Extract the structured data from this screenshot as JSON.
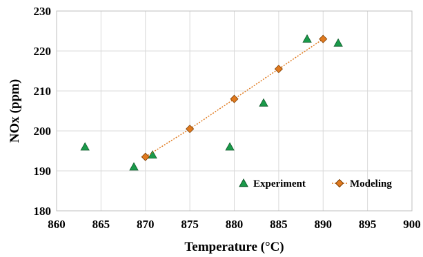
{
  "chart_data": {
    "type": "scatter",
    "title": "",
    "xlabel": "Temperature (°C)",
    "ylabel": "NOx (ppm)",
    "xlim": [
      860,
      900
    ],
    "ylim": [
      180,
      230
    ],
    "xticks": [
      860,
      865,
      870,
      875,
      880,
      885,
      890,
      895,
      900
    ],
    "yticks": [
      180,
      190,
      200,
      210,
      220,
      230
    ],
    "grid": true,
    "legend_position": "bottom-right",
    "series": [
      {
        "name": "Experiment",
        "marker": "triangle",
        "line": false,
        "color": "#1a9a4a",
        "points": [
          [
            863.2,
            196
          ],
          [
            868.7,
            191
          ],
          [
            870.8,
            194
          ],
          [
            879.5,
            196
          ],
          [
            883.3,
            207
          ],
          [
            888.2,
            223
          ],
          [
            891.7,
            222
          ]
        ]
      },
      {
        "name": "Modeling",
        "marker": "diamond",
        "line": "dotted",
        "color": "#e07a1f",
        "points": [
          [
            870,
            193.5
          ],
          [
            875,
            200.5
          ],
          [
            880,
            208
          ],
          [
            885,
            215.5
          ],
          [
            890,
            223
          ]
        ]
      }
    ]
  }
}
